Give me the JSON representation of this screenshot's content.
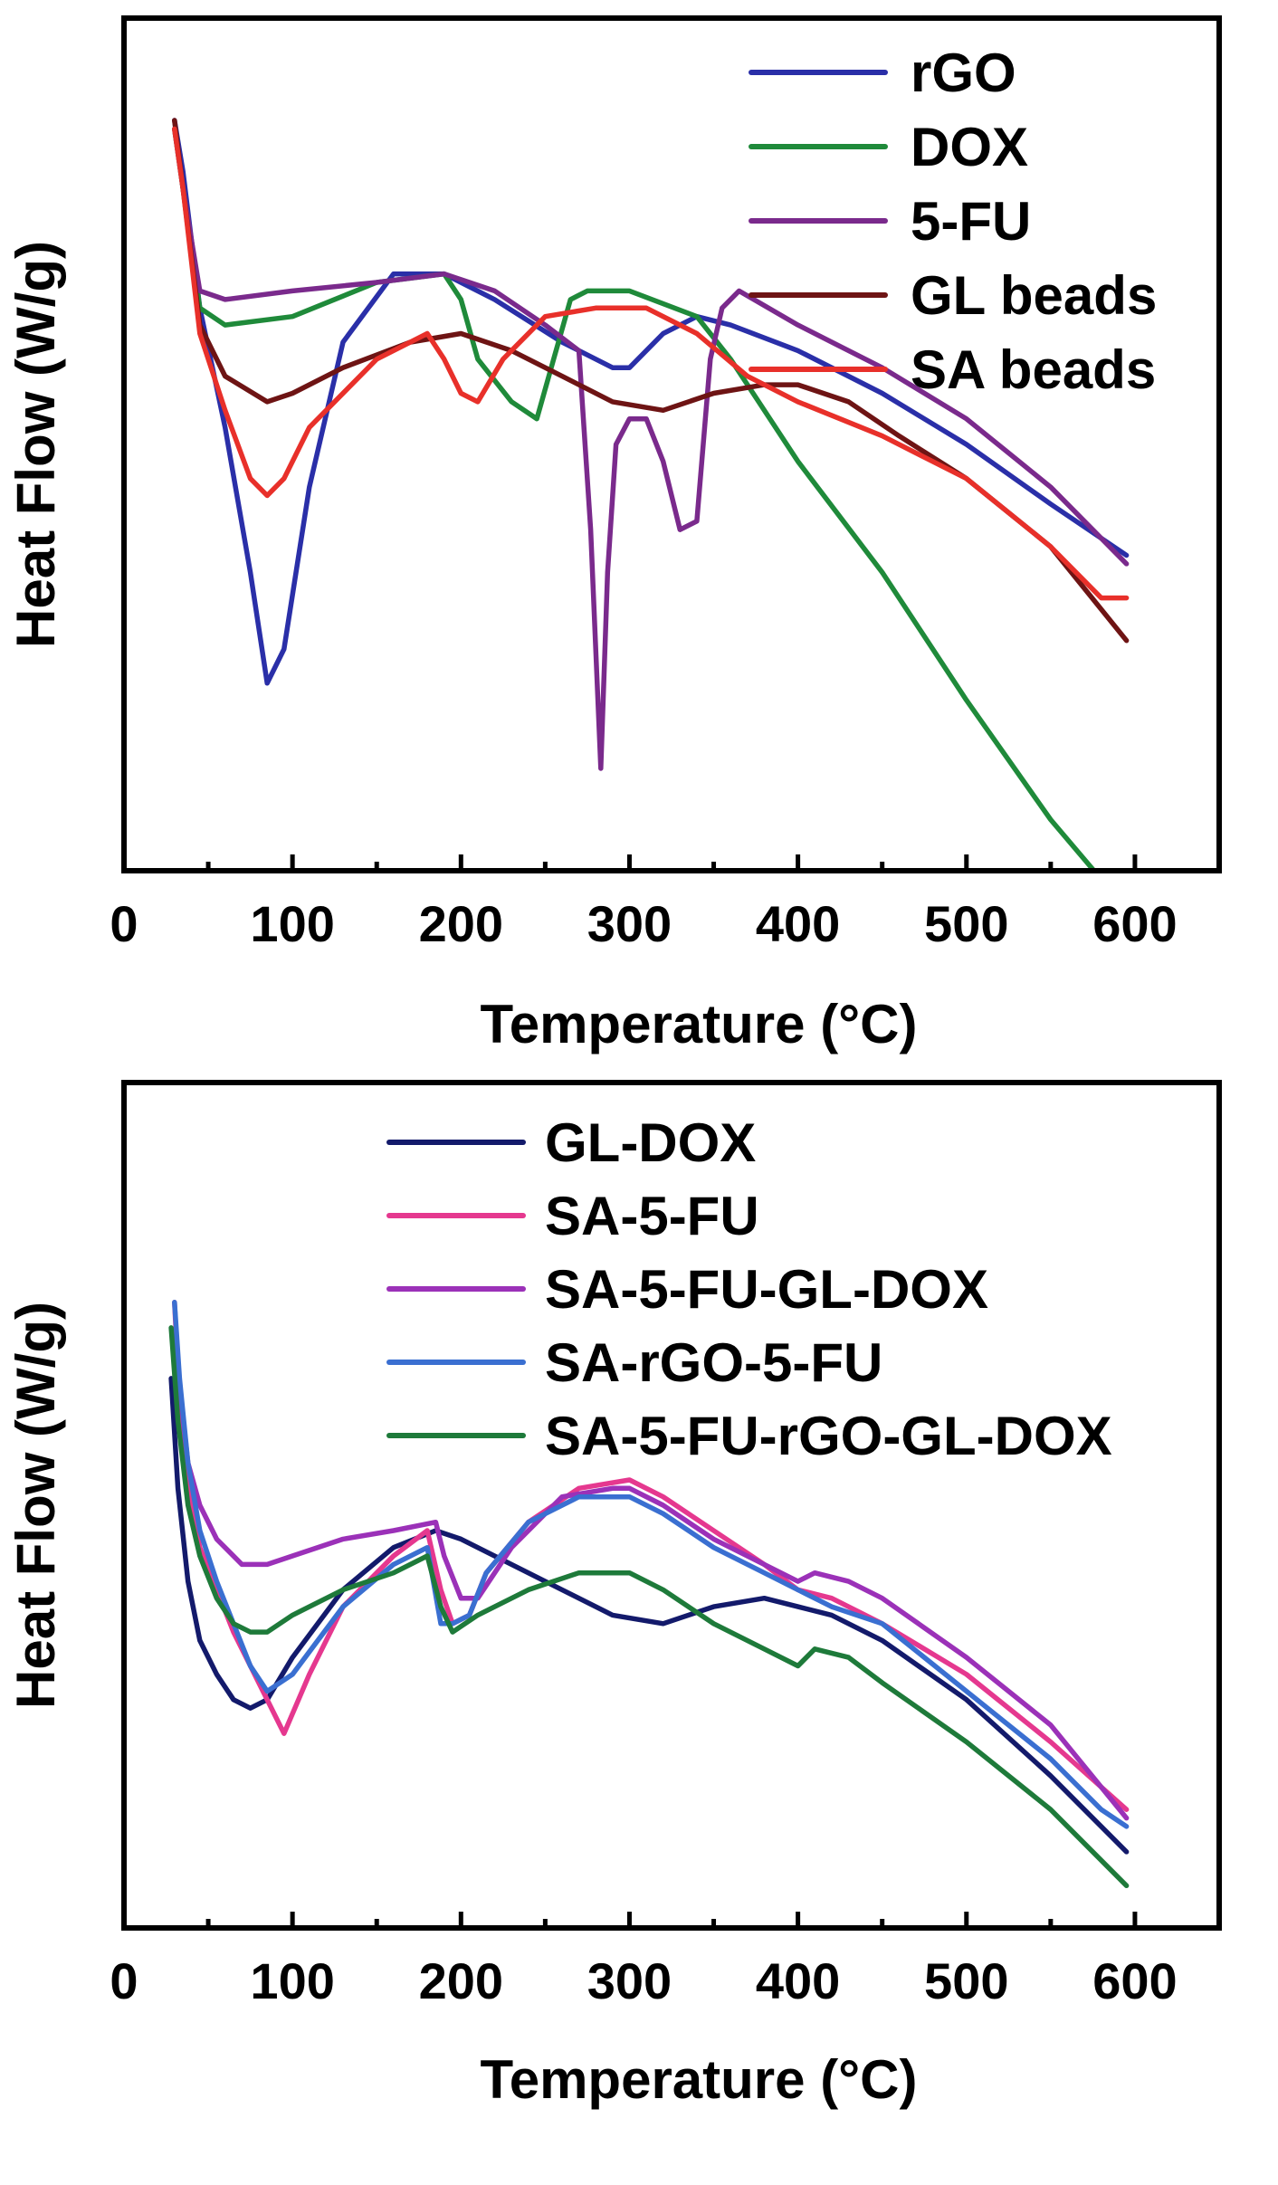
{
  "chart_data": [
    {
      "type": "line",
      "title": "",
      "xlabel": "Temperature (°C)",
      "ylabel": "Heat Flow (W/g)",
      "xlim": [
        0,
        650
      ],
      "ylim": [
        0,
        100
      ],
      "xticks": [
        0,
        100,
        200,
        300,
        400,
        500,
        600
      ],
      "yticks_shown": false,
      "legend_position": "top-right",
      "series": [
        {
          "name": "rGO",
          "color": "#2a2fa8",
          "x": [
            30,
            35,
            45,
            60,
            75,
            85,
            95,
            110,
            130,
            160,
            190,
            220,
            260,
            290,
            300,
            320,
            340,
            360,
            400,
            450,
            500,
            550,
            595
          ],
          "y": [
            88,
            82,
            66,
            52,
            35,
            22,
            26,
            45,
            62,
            70,
            70,
            67,
            62,
            59,
            59,
            63,
            65,
            64,
            61,
            56,
            50,
            43,
            37
          ]
        },
        {
          "name": "DOX",
          "color": "#1f8a3a",
          "x": [
            30,
            35,
            45,
            60,
            100,
            150,
            190,
            200,
            210,
            230,
            245,
            255,
            265,
            275,
            300,
            340,
            360,
            380,
            400,
            450,
            500,
            550,
            580
          ],
          "y": [
            87,
            80,
            66,
            64,
            65,
            69,
            70,
            67,
            60,
            55,
            53,
            60,
            67,
            68,
            68,
            65,
            60,
            54,
            48,
            35,
            20,
            6,
            -1
          ]
        },
        {
          "name": "5-FU",
          "color": "#7a2a8c",
          "x": [
            30,
            35,
            45,
            60,
            100,
            150,
            190,
            220,
            250,
            270,
            277,
            283,
            287,
            292,
            300,
            310,
            320,
            330,
            340,
            348,
            355,
            365,
            400,
            450,
            500,
            550,
            595
          ],
          "y": [
            87,
            80,
            68,
            67,
            68,
            69,
            70,
            68,
            64,
            61,
            40,
            12,
            35,
            50,
            53,
            53,
            48,
            40,
            41,
            60,
            66,
            68,
            64,
            59,
            53,
            45,
            36
          ]
        },
        {
          "name": "GL beads",
          "color": "#6e1414",
          "x": [
            30,
            35,
            45,
            60,
            85,
            100,
            130,
            170,
            200,
            230,
            260,
            290,
            320,
            350,
            380,
            400,
            430,
            460,
            500,
            550,
            595
          ],
          "y": [
            88,
            80,
            64,
            58,
            55,
            56,
            59,
            62,
            63,
            61,
            58,
            55,
            54,
            56,
            57,
            57,
            55,
            51,
            46,
            38,
            27
          ]
        },
        {
          "name": "SA beads",
          "color": "#e8302a",
          "x": [
            30,
            35,
            45,
            60,
            75,
            85,
            95,
            110,
            150,
            180,
            190,
            200,
            210,
            225,
            250,
            280,
            310,
            340,
            370,
            400,
            450,
            500,
            550,
            580,
            595
          ],
          "y": [
            87,
            80,
            63,
            54,
            46,
            44,
            46,
            52,
            60,
            63,
            60,
            56,
            55,
            60,
            65,
            66,
            66,
            63,
            58,
            55,
            51,
            46,
            38,
            32,
            32
          ]
        }
      ]
    },
    {
      "type": "line",
      "title": "",
      "xlabel": "Temperature (°C)",
      "ylabel": "Heat Flow (W/g)",
      "xlim": [
        0,
        650
      ],
      "ylim": [
        0,
        100
      ],
      "xticks": [
        0,
        100,
        200,
        300,
        400,
        500,
        600
      ],
      "yticks_shown": false,
      "legend_position": "top",
      "series": [
        {
          "name": "GL-DOX",
          "color": "#131a6b",
          "x": [
            28,
            32,
            38,
            45,
            55,
            65,
            75,
            85,
            100,
            130,
            160,
            185,
            200,
            230,
            260,
            290,
            320,
            350,
            380,
            400,
            420,
            450,
            500,
            550,
            595
          ],
          "y": [
            65,
            52,
            41,
            34,
            30,
            27,
            26,
            27,
            32,
            40,
            45,
            47,
            46,
            43,
            40,
            37,
            36,
            38,
            39,
            38,
            37,
            34,
            27,
            18,
            9
          ]
        },
        {
          "name": "SA-5-FU",
          "color": "#e5388f",
          "x": [
            30,
            33,
            38,
            45,
            55,
            65,
            80,
            95,
            110,
            130,
            160,
            180,
            188,
            195,
            205,
            215,
            240,
            270,
            300,
            320,
            350,
            380,
            400,
            420,
            450,
            500,
            550,
            595
          ],
          "y": [
            74,
            62,
            52,
            45,
            40,
            35,
            29,
            23,
            30,
            38,
            44,
            47,
            40,
            36,
            37,
            42,
            48,
            52,
            53,
            51,
            47,
            43,
            40,
            39,
            36,
            30,
            22,
            14
          ]
        },
        {
          "name": "SA-5-FU-GL-DOX",
          "color": "#9b31b8",
          "x": [
            30,
            33,
            38,
            45,
            55,
            70,
            85,
            100,
            130,
            160,
            185,
            190,
            200,
            210,
            230,
            260,
            290,
            300,
            320,
            350,
            380,
            400,
            410,
            430,
            450,
            500,
            550,
            595
          ],
          "y": [
            70,
            64,
            55,
            50,
            46,
            43,
            43,
            44,
            46,
            47,
            48,
            44,
            39,
            39,
            45,
            51,
            52,
            52,
            50,
            46,
            43,
            41,
            42,
            41,
            39,
            32,
            24,
            13
          ]
        },
        {
          "name": "SA-rGO-5-FU",
          "color": "#3a6fd1",
          "x": [
            30,
            33,
            38,
            45,
            55,
            65,
            75,
            85,
            100,
            130,
            160,
            180,
            188,
            195,
            205,
            215,
            240,
            270,
            300,
            320,
            350,
            380,
            400,
            420,
            450,
            500,
            550,
            580,
            595
          ],
          "y": [
            74,
            65,
            55,
            47,
            41,
            36,
            31,
            28,
            30,
            38,
            43,
            45,
            36,
            36,
            37,
            42,
            48,
            51,
            51,
            49,
            45,
            42,
            40,
            38,
            36,
            28,
            20,
            14,
            12
          ]
        },
        {
          "name": "SA-5-FU-rGO-GL-DOX",
          "color": "#1e7a3a",
          "x": [
            28,
            32,
            38,
            45,
            55,
            65,
            75,
            85,
            100,
            130,
            160,
            180,
            188,
            195,
            210,
            240,
            270,
            300,
            320,
            350,
            380,
            400,
            410,
            430,
            450,
            500,
            550,
            595
          ],
          "y": [
            71,
            60,
            50,
            44,
            39,
            36,
            35,
            35,
            37,
            40,
            42,
            44,
            38,
            35,
            37,
            40,
            42,
            42,
            40,
            36,
            33,
            31,
            33,
            32,
            29,
            22,
            14,
            5
          ]
        }
      ]
    }
  ]
}
